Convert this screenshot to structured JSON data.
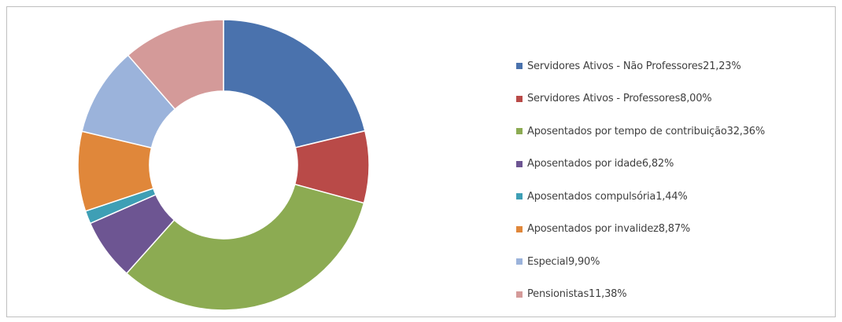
{
  "chart_data": {
    "type": "pie",
    "subtype": "donut",
    "title": "",
    "legend_position": "right",
    "slices": [
      {
        "name": "Servidores Ativos - Não Professores",
        "value_label": "21,23%",
        "value": 21.23,
        "color": "#4a72ad"
      },
      {
        "name": "Servidores Ativos - Professores",
        "value_label": "8,00%",
        "value": 8.0,
        "color": "#b94a48"
      },
      {
        "name": "Aposentados por tempo de contribuição",
        "value_label": "32,36%",
        "value": 32.36,
        "color": "#8cab52"
      },
      {
        "name": "Aposentados por idade",
        "value_label": "6,82%",
        "value": 6.82,
        "color": "#6d5592"
      },
      {
        "name": "Aposentados compulsória",
        "value_label": "1,44%",
        "value": 1.44,
        "color": "#3e9fb5"
      },
      {
        "name": "Aposentados por invalidez",
        "value_label": "8,87%",
        "value": 8.87,
        "color": "#e0873a"
      },
      {
        "name": "Especial",
        "value_label": "9,90%",
        "value": 9.9,
        "color": "#9bb3db"
      },
      {
        "name": "Pensionistas",
        "value_label": "11,38%",
        "value": 11.38,
        "color": "#d49a99"
      }
    ]
  }
}
